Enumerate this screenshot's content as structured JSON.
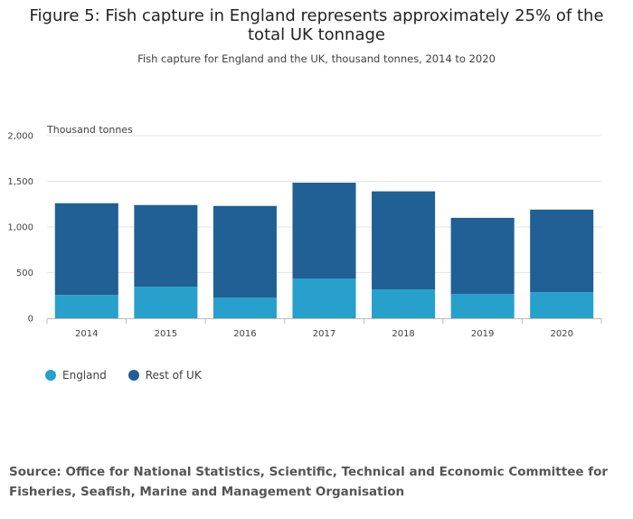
{
  "chart_data": {
    "type": "bar",
    "stacked": true,
    "title": "Figure 5: Fish capture in England represents approximately 25% of the total UK tonnage",
    "subtitle": "Fish capture for England and the UK, thousand tonnes, 2014 to 2020",
    "ylabel": "Thousand tonnes",
    "xlabel": "",
    "ylim": [
      0,
      2000
    ],
    "yticks": [
      {
        "value": 0,
        "label": "0"
      },
      {
        "value": 500,
        "label": "500"
      },
      {
        "value": 1000,
        "label": "1,000"
      },
      {
        "value": 1500,
        "label": "1,500"
      },
      {
        "value": 2000,
        "label": "2,000"
      }
    ],
    "categories": [
      "2014",
      "2015",
      "2016",
      "2017",
      "2018",
      "2019",
      "2020"
    ],
    "series": [
      {
        "name": "England",
        "color": "#27a0cc",
        "values": [
          255,
          345,
          225,
          435,
          315,
          265,
          285
        ]
      },
      {
        "name": "Rest of UK",
        "color": "#206095",
        "values": [
          1005,
          895,
          1005,
          1050,
          1075,
          835,
          905
        ]
      }
    ],
    "legend": "bottom-left",
    "grid": true
  },
  "source": {
    "text": "Source: Office for National Statistics, Scientific, Technical and Economic Committee for Fisheries, Seafish, Marine and Management Organisation"
  }
}
